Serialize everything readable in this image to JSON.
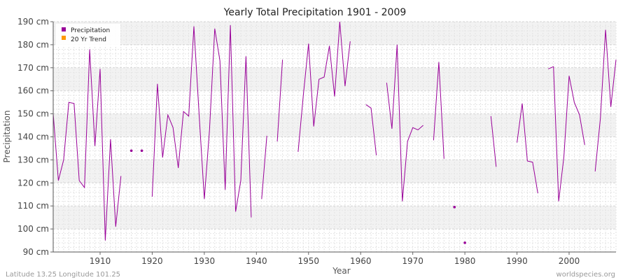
{
  "chart_data": {
    "type": "line",
    "title": "Yearly Total Precipitation 1901 - 2009",
    "xlabel": "Year",
    "ylabel": "Precipitation",
    "xlim": [
      1901,
      2009
    ],
    "ylim": [
      90,
      190
    ],
    "x_ticks": [
      1910,
      1920,
      1930,
      1940,
      1950,
      1960,
      1970,
      1980,
      1990,
      2000
    ],
    "y_ticks": [
      90,
      100,
      110,
      120,
      130,
      140,
      150,
      160,
      170,
      180,
      190
    ],
    "y_unit": "cm",
    "grid": true,
    "legend_position": "top-left",
    "series": [
      {
        "name": "Precipitation",
        "color": "#990099",
        "points": [
          [
            1901,
            150
          ],
          [
            1902,
            121
          ],
          [
            1903,
            130
          ],
          [
            1904,
            155
          ],
          [
            1905,
            154.5
          ],
          [
            1906,
            121
          ],
          [
            1907,
            118
          ],
          [
            1908,
            178
          ],
          [
            1909,
            136
          ],
          [
            1910,
            169.5
          ],
          [
            1911,
            95
          ],
          [
            1912,
            139
          ],
          [
            1913,
            101
          ],
          [
            1914,
            123
          ],
          [
            1915,
            null
          ],
          [
            1916,
            134
          ],
          [
            1917,
            null
          ],
          [
            1918,
            134
          ],
          [
            1919,
            null
          ],
          [
            1920,
            114
          ],
          [
            1921,
            163
          ],
          [
            1922,
            131
          ],
          [
            1923,
            149.5
          ],
          [
            1924,
            144
          ],
          [
            1925,
            126.5
          ],
          [
            1926,
            151
          ],
          [
            1927,
            149
          ],
          [
            1928,
            188
          ],
          [
            1929,
            150
          ],
          [
            1930,
            113
          ],
          [
            1931,
            143
          ],
          [
            1932,
            187
          ],
          [
            1933,
            173
          ],
          [
            1934,
            117
          ],
          [
            1935,
            188.5
          ],
          [
            1936,
            107.5
          ],
          [
            1937,
            121
          ],
          [
            1938,
            175
          ],
          [
            1939,
            105
          ],
          [
            1940,
            null
          ],
          [
            1941,
            113
          ],
          [
            1942,
            140.5
          ],
          [
            1943,
            null
          ],
          [
            1944,
            138
          ],
          [
            1945,
            173.5
          ],
          [
            1946,
            null
          ],
          [
            1947,
            null
          ],
          [
            1948,
            133.5
          ],
          [
            1949,
            158
          ],
          [
            1950,
            180.5
          ],
          [
            1951,
            144.5
          ],
          [
            1952,
            165
          ],
          [
            1953,
            166
          ],
          [
            1954,
            179.5
          ],
          [
            1955,
            157.5
          ],
          [
            1956,
            190
          ],
          [
            1957,
            162
          ],
          [
            1958,
            181.5
          ],
          [
            1959,
            null
          ],
          [
            1960,
            null
          ],
          [
            1961,
            154
          ],
          [
            1962,
            152.5
          ],
          [
            1963,
            132
          ],
          [
            1964,
            null
          ],
          [
            1965,
            163.5
          ],
          [
            1966,
            143.5
          ],
          [
            1967,
            180
          ],
          [
            1968,
            112
          ],
          [
            1969,
            138
          ],
          [
            1970,
            144
          ],
          [
            1971,
            143
          ],
          [
            1972,
            145
          ],
          [
            1973,
            null
          ],
          [
            1974,
            138.5
          ],
          [
            1975,
            172.5
          ],
          [
            1976,
            130.5
          ],
          [
            1977,
            null
          ],
          [
            1978,
            109.5
          ],
          [
            1979,
            null
          ],
          [
            1980,
            94
          ],
          [
            1981,
            null
          ],
          [
            1982,
            null
          ],
          [
            1983,
            null
          ],
          [
            1984,
            null
          ],
          [
            1985,
            149
          ],
          [
            1986,
            127
          ],
          [
            1987,
            null
          ],
          [
            1988,
            null
          ],
          [
            1989,
            null
          ],
          [
            1990,
            137.5
          ],
          [
            1991,
            154.5
          ],
          [
            1992,
            129.5
          ],
          [
            1993,
            129
          ],
          [
            1994,
            115.5
          ],
          [
            1995,
            null
          ],
          [
            1996,
            169.5
          ],
          [
            1997,
            170.5
          ],
          [
            1998,
            112
          ],
          [
            1999,
            131.5
          ],
          [
            2000,
            166.5
          ],
          [
            2001,
            155
          ],
          [
            2002,
            149.5
          ],
          [
            2003,
            136.5
          ],
          [
            2004,
            null
          ],
          [
            2005,
            125
          ],
          [
            2006,
            148
          ],
          [
            2007,
            186.5
          ],
          [
            2008,
            153
          ],
          [
            2009,
            173.5
          ]
        ]
      },
      {
        "name": "20 Yr Trend",
        "color": "#ff9900",
        "points": []
      }
    ]
  },
  "footer": {
    "left": "Latitude 13.25 Longitude 101.25",
    "right": "worldspecies.org"
  }
}
